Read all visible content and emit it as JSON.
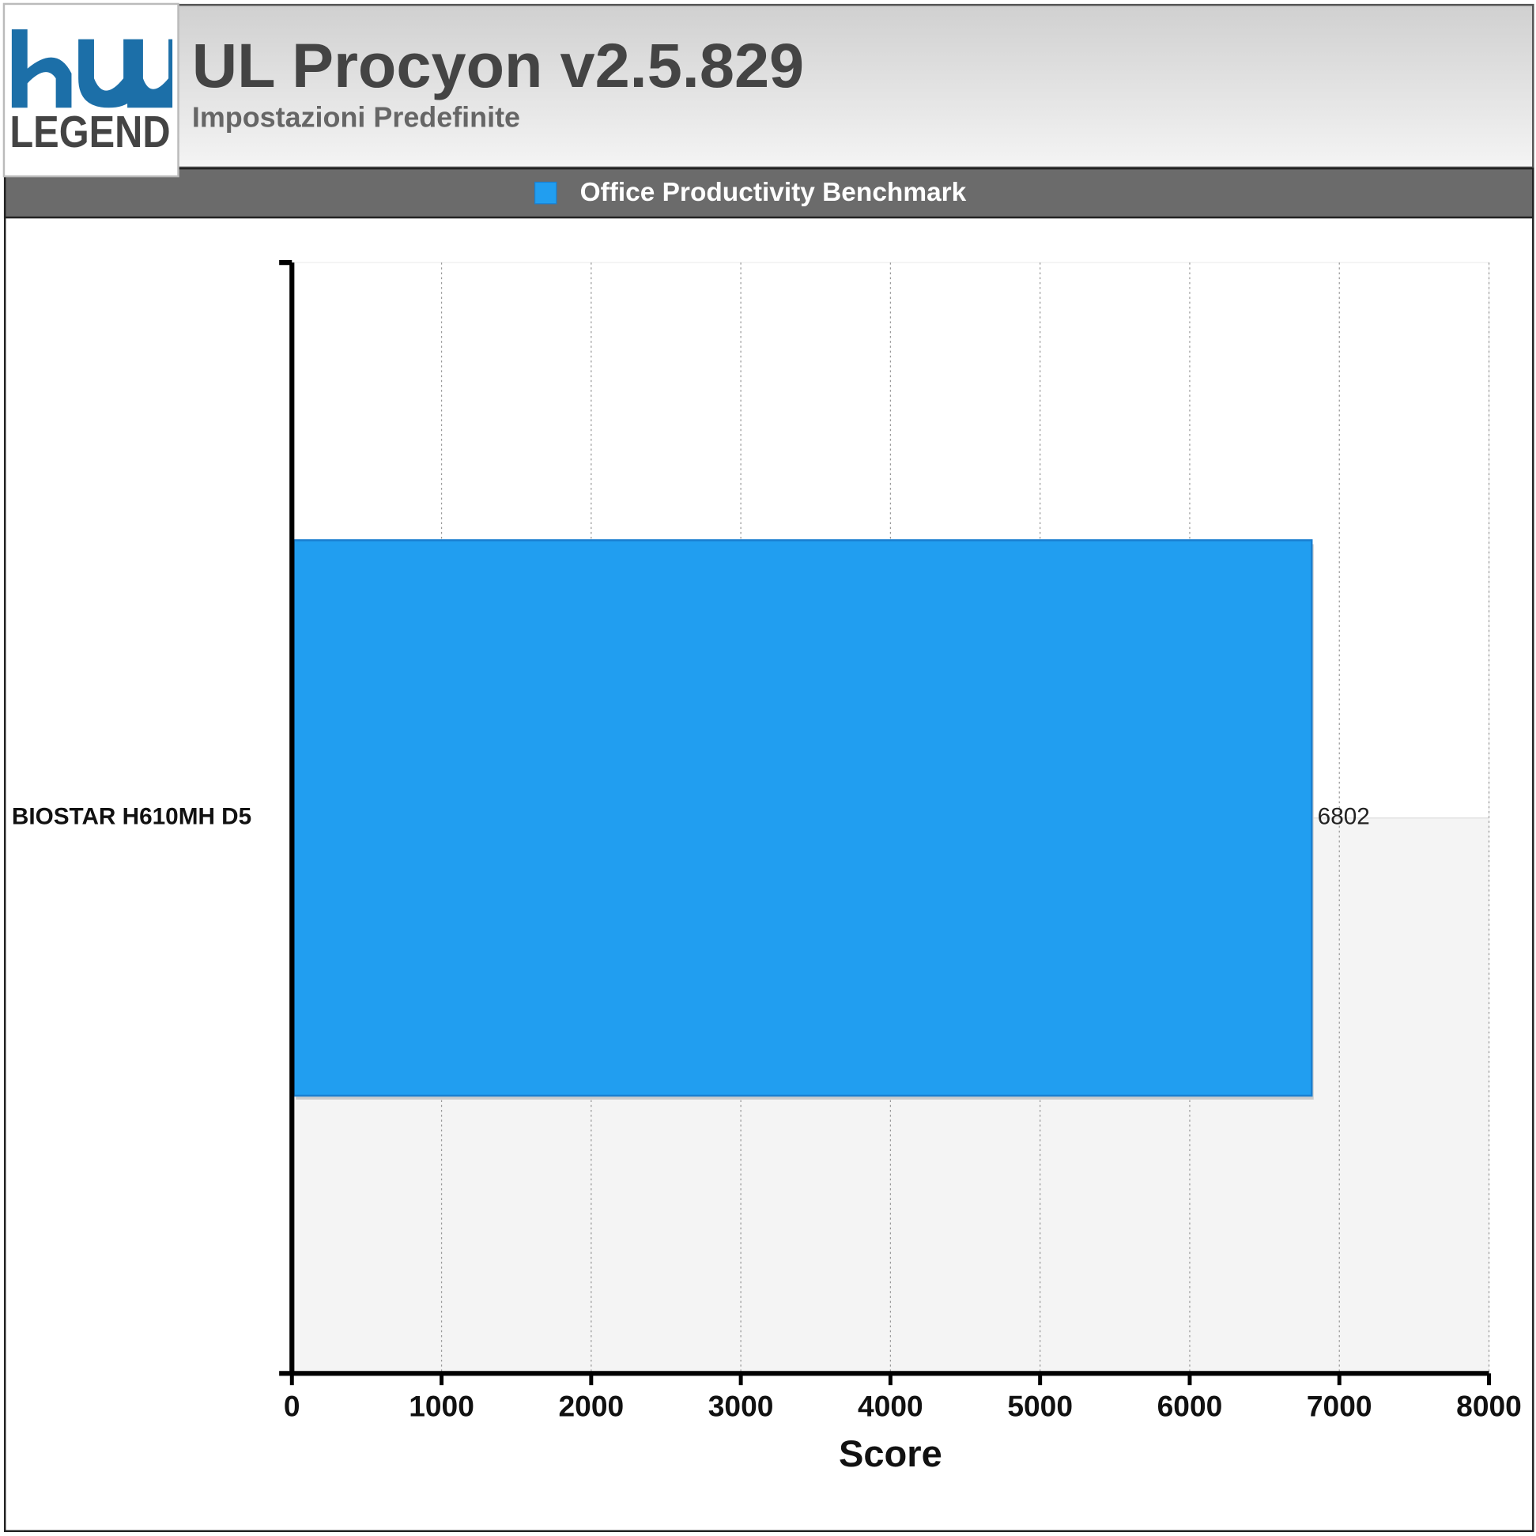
{
  "logo": {
    "text": "LEGEND"
  },
  "chart_data": {
    "type": "bar",
    "orientation": "horizontal",
    "title": "UL Procyon v2.5.829",
    "subtitle": "Impostazioni Predefinite",
    "categories": [
      "BIOSTAR H610MH D5"
    ],
    "series": [
      {
        "name": "Office Productivity Benchmark",
        "color": "#219ef0",
        "values": [
          6802
        ]
      }
    ],
    "xlim": [
      0,
      8000
    ],
    "xticks": [
      0,
      1000,
      2000,
      3000,
      4000,
      5000,
      6000,
      7000,
      8000
    ],
    "x_label": "Score",
    "grid": true,
    "legend": "top"
  }
}
